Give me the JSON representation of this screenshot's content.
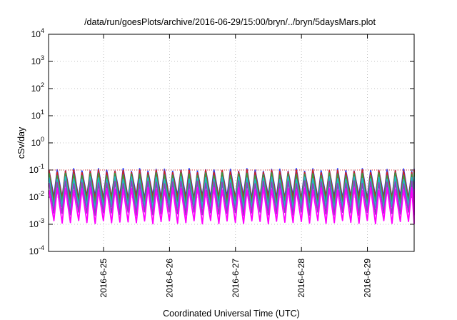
{
  "chart_data": {
    "type": "line",
    "title": "/data/run/goesPlots/archive/2016-06-29/15:00/bryn/../bryn/5daysMars.plot",
    "xlabel": "Coordinated Universal Time (UTC)",
    "ylabel": "cSv/day",
    "yscale": "log",
    "ylim": [
      0.0001,
      10000
    ],
    "y_ticks": [
      {
        "base": "10",
        "exp": "-4"
      },
      {
        "base": "10",
        "exp": "-3"
      },
      {
        "base": "10",
        "exp": "-2"
      },
      {
        "base": "10",
        "exp": "-1"
      },
      {
        "base": "10",
        "exp": "0"
      },
      {
        "base": "10",
        "exp": "1"
      },
      {
        "base": "10",
        "exp": "2"
      },
      {
        "base": "10",
        "exp": "3"
      },
      {
        "base": "10",
        "exp": "4"
      }
    ],
    "xlim": [
      "2016-06-24T04:00",
      "2016-06-29T17:00"
    ],
    "x_ticks": [
      "2016-6-25",
      "2016-6-26",
      "2016-6-27",
      "2016-6-28",
      "2016-6-29"
    ],
    "grid": true,
    "reference_line": {
      "value": 0.1,
      "color": "#e03030",
      "style": "dotted"
    },
    "series": [
      {
        "color": "#1e3cff",
        "peak": 0.1,
        "trough": 0.01
      },
      {
        "color": "#cc2222",
        "peak": 0.09,
        "trough": 0.008
      },
      {
        "color": "#3a9a3a",
        "peak": 0.07,
        "trough": 0.006
      },
      {
        "color": "#22b8c8",
        "peak": 0.05,
        "trough": 0.004
      },
      {
        "color": "#9040c0",
        "peak": 0.035,
        "trough": 0.0025
      },
      {
        "color": "#ff00ff",
        "peak": 0.02,
        "trough": 0.0012
      }
    ],
    "cycles_per_day": 8
  }
}
